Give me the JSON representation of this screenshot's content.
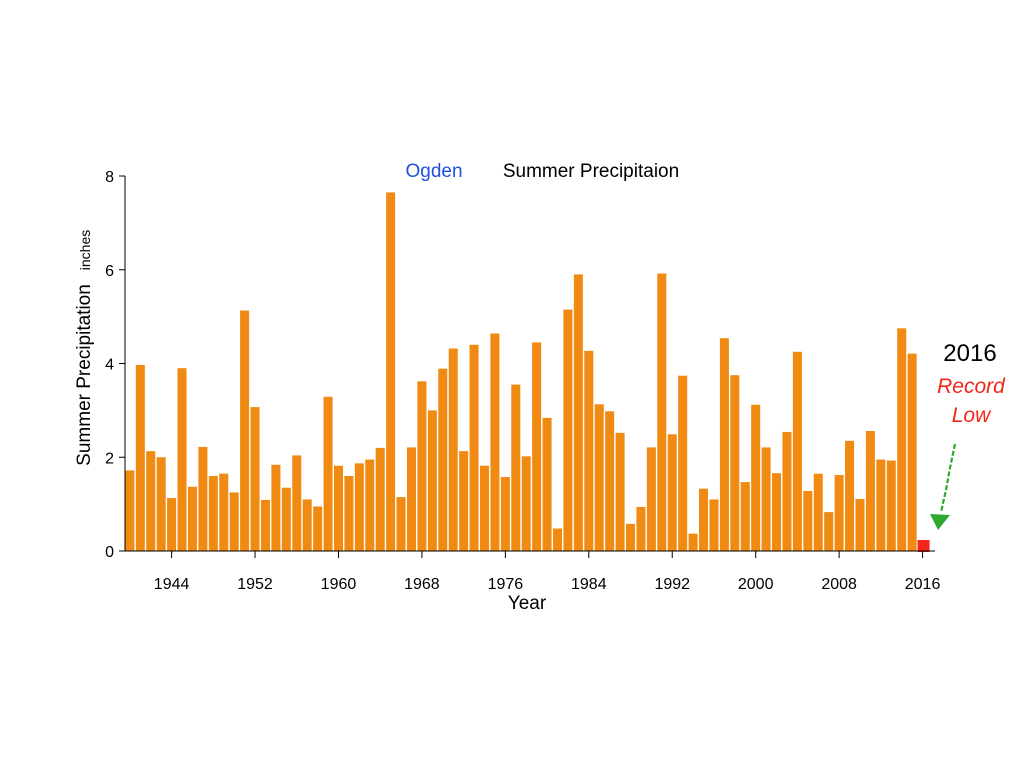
{
  "chart_data": {
    "type": "bar",
    "title_station": "Ogden",
    "title_text": "Summer Precipitaion",
    "ylabel": "Summer Precipitation",
    "yunit": "inches",
    "xlabel": "Year",
    "ylim": [
      0,
      8
    ],
    "yticks": [
      0,
      2,
      4,
      6,
      8
    ],
    "xticks": [
      1944,
      1952,
      1960,
      1968,
      1976,
      1984,
      1992,
      2000,
      2008,
      2016
    ],
    "x": [
      1940,
      1941,
      1942,
      1943,
      1944,
      1945,
      1946,
      1947,
      1948,
      1949,
      1950,
      1951,
      1952,
      1953,
      1954,
      1955,
      1956,
      1957,
      1958,
      1959,
      1960,
      1961,
      1962,
      1963,
      1964,
      1965,
      1966,
      1967,
      1968,
      1969,
      1970,
      1971,
      1972,
      1973,
      1974,
      1975,
      1976,
      1977,
      1978,
      1979,
      1980,
      1981,
      1982,
      1983,
      1984,
      1985,
      1986,
      1987,
      1988,
      1989,
      1990,
      1991,
      1992,
      1993,
      1994,
      1995,
      1996,
      1997,
      1998,
      1999,
      2000,
      2001,
      2002,
      2003,
      2004,
      2005,
      2006,
      2007,
      2008,
      2009,
      2010,
      2011,
      2012,
      2013,
      2014,
      2015
    ],
    "values": [
      1.72,
      3.97,
      2.13,
      2.0,
      1.13,
      3.9,
      1.37,
      2.22,
      1.6,
      1.65,
      1.25,
      5.13,
      3.07,
      1.09,
      1.84,
      1.35,
      2.04,
      1.1,
      0.95,
      3.29,
      1.82,
      1.6,
      1.87,
      1.95,
      2.2,
      7.65,
      1.15,
      2.21,
      3.62,
      3.0,
      3.89,
      4.32,
      2.13,
      4.4,
      1.82,
      4.64,
      1.58,
      3.55,
      2.02,
      4.45,
      2.84,
      0.48,
      5.15,
      5.9,
      4.27,
      3.13,
      2.98,
      2.52,
      0.58,
      0.94,
      2.21,
      5.92,
      2.49,
      3.74,
      0.37,
      1.33,
      1.1,
      4.54,
      3.75,
      1.47,
      3.12,
      2.21,
      1.66,
      2.54,
      4.25,
      1.28,
      1.65,
      0.83,
      1.62,
      2.35,
      1.11,
      2.56,
      1.95,
      1.93,
      4.75,
      4.21
    ],
    "bar_color": "#F08A12",
    "highlight": {
      "year": 2016,
      "value": 0.12,
      "color": "#F2261A"
    },
    "annotation": {
      "year_label": "2016",
      "line1": "Record",
      "line2": "Low",
      "text_color": "#F2261A",
      "arrow_color": "#2EA82E"
    },
    "title_station_color": "#1F4FE0",
    "grid": false,
    "legend": "none"
  }
}
